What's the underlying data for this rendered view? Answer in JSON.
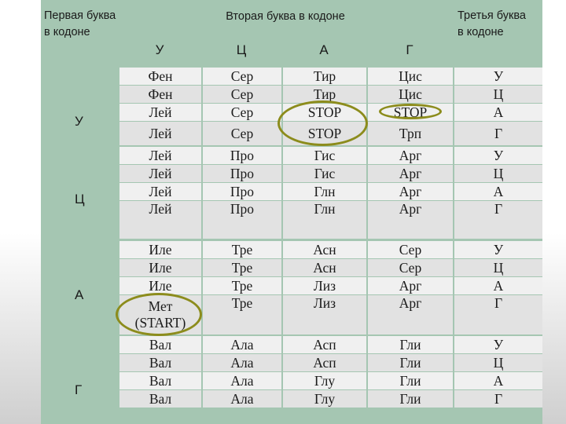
{
  "header": {
    "first_letter": "Первая буква\nв кодоне",
    "second_letter": "Вторая буква в кодоне",
    "third_letter": "Третья буква\nв кодоне",
    "second_letters": [
      "У",
      "Ц",
      "А",
      "Г"
    ]
  },
  "groups": [
    {
      "first": "У",
      "rows": [
        [
          "Фен",
          "Сер",
          "Тир",
          "Цис",
          "У"
        ],
        [
          "Фен",
          "Сер",
          "Тир",
          "Цис",
          "Ц"
        ],
        [
          "Лей",
          "Сер",
          "STOP",
          "STOP",
          "А"
        ],
        [
          "Лей",
          "Сер",
          "STOP",
          "Трп",
          "Г"
        ]
      ]
    },
    {
      "first": "Ц",
      "rows": [
        [
          "Лей",
          "Про",
          "Гис",
          "Арг",
          "У"
        ],
        [
          "Лей",
          "Про",
          "Гис",
          "Арг",
          "Ц"
        ],
        [
          "Лей",
          "Про",
          "Глн",
          "Арг",
          "А"
        ],
        [
          "Лей",
          "Про",
          "Глн",
          "Арг",
          "Г"
        ]
      ]
    },
    {
      "first": "А",
      "rows": [
        [
          "Иле",
          "Тре",
          "Асн",
          "Сер",
          "У"
        ],
        [
          "Иле",
          "Тре",
          "Асн",
          "Сер",
          "Ц"
        ],
        [
          "Иле",
          "Тре",
          "Лиз",
          "Арг",
          "А"
        ],
        [
          "Мет (START)",
          "Тре",
          "Лиз",
          "Арг",
          "Г"
        ]
      ]
    },
    {
      "first": "Г",
      "rows": [
        [
          "Вал",
          "Ала",
          "Асп",
          "Гли",
          "У"
        ],
        [
          "Вал",
          "Ала",
          "Асп",
          "Гли",
          "Ц"
        ],
        [
          "Вал",
          "Ала",
          "Глу",
          "Гли",
          "А"
        ],
        [
          "Вал",
          "Ала",
          "Глу",
          "Гли",
          "Г"
        ]
      ]
    }
  ],
  "colors": {
    "header_green": "#a5c6b2",
    "cell_light": "#f0f0f0",
    "cell_mid": "#e2e2e2",
    "highlight_oval": "#8c8c1c"
  }
}
